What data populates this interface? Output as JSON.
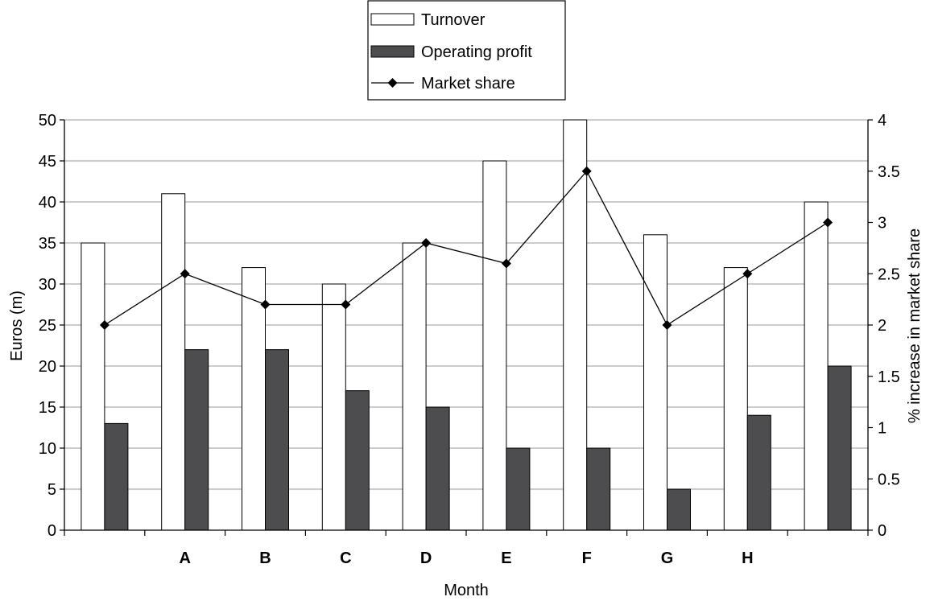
{
  "chart_data": {
    "type": "bar",
    "title": "",
    "xlabel": "Month",
    "ylabel": "Euros (m)",
    "y2label": "% increase in market share",
    "categories": [
      "",
      "A",
      "B",
      "C",
      "D",
      "E",
      "F",
      "G",
      "H",
      ""
    ],
    "ylim": [
      0,
      50
    ],
    "yticks": [
      "0",
      "5",
      "10",
      "15",
      "20",
      "25",
      "30",
      "35",
      "40",
      "45",
      "50"
    ],
    "y2lim": [
      0,
      4
    ],
    "y2ticks": [
      "0",
      "0.5",
      "1",
      "1.5",
      "2",
      "2.5",
      "3",
      "3.5",
      "4"
    ],
    "grid": true,
    "legend_position": "top-center",
    "series": [
      {
        "name": "Turnover",
        "kind": "bar",
        "axis": "left",
        "color": "#ffffff",
        "values": [
          35,
          41,
          32,
          30,
          35,
          45,
          50,
          36,
          32,
          40
        ]
      },
      {
        "name": "Operating profit",
        "kind": "bar",
        "axis": "left",
        "color": "#4d4d4f",
        "values": [
          13,
          22,
          22,
          17,
          15,
          10,
          10,
          5,
          14,
          20
        ]
      },
      {
        "name": "Market share",
        "kind": "line",
        "axis": "right",
        "color": "#000000",
        "marker": "diamond",
        "values": [
          2,
          2.5,
          2.2,
          2.2,
          2.8,
          2.6,
          3.5,
          2,
          2.5,
          3
        ]
      }
    ]
  }
}
